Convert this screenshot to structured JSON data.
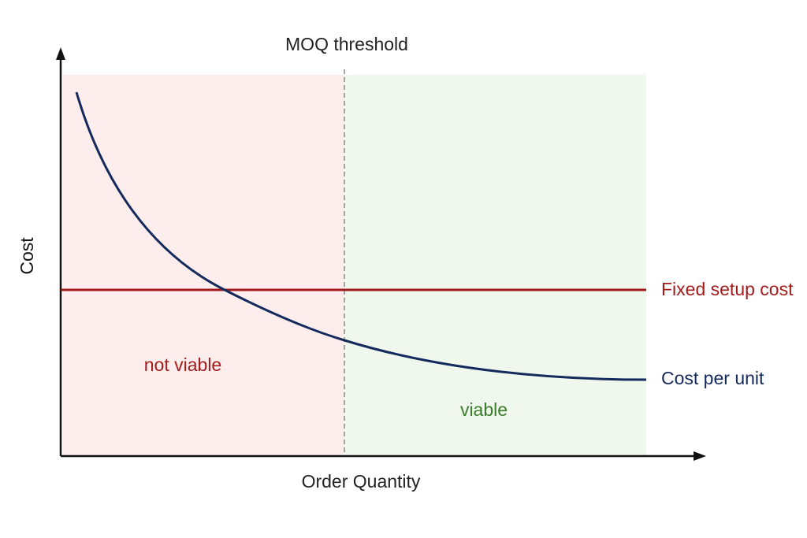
{
  "header": {
    "title": "MOQ threshold"
  },
  "axes": {
    "y_label": "Cost",
    "x_label": "Order Quantity"
  },
  "lines": {
    "fixed": "Fixed setup cost",
    "unit": "Cost per unit"
  },
  "regions": {
    "left": "not viable",
    "right": "viable"
  }
}
